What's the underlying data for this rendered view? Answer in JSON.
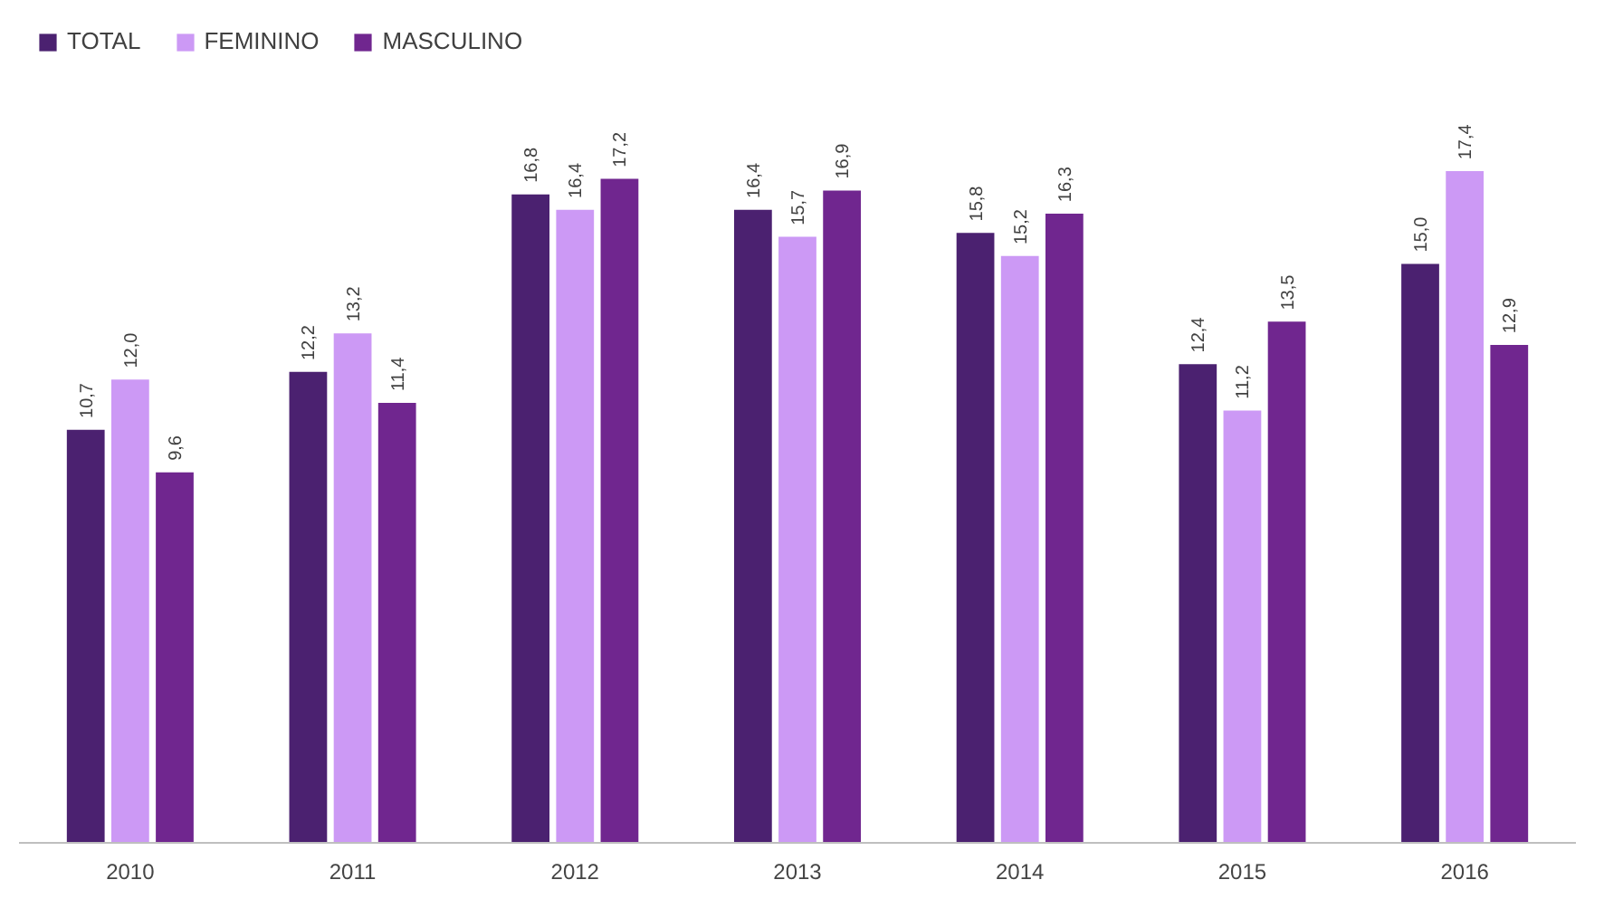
{
  "chart_data": {
    "type": "bar",
    "categories": [
      "2010",
      "2011",
      "2012",
      "2013",
      "2014",
      "2015",
      "2016"
    ],
    "series": [
      {
        "name": "TOTAL",
        "color": "#4b2170",
        "values": [
          10.7,
          12.2,
          16.8,
          16.4,
          15.8,
          12.4,
          15.0
        ],
        "value_labels": [
          "10,7",
          "12,2",
          "16,8",
          "16,4",
          "15,8",
          "12,4",
          "15,0"
        ]
      },
      {
        "name": "FEMININO",
        "color": "#cc99f5",
        "values": [
          12.0,
          13.2,
          16.4,
          15.7,
          15.2,
          11.2,
          17.4
        ],
        "value_labels": [
          "12,0",
          "13,2",
          "16,4",
          "15,7",
          "15,2",
          "11,2",
          "17,4"
        ]
      },
      {
        "name": "MASCULINO",
        "color": "#70268f",
        "values": [
          9.6,
          11.4,
          17.2,
          16.9,
          16.3,
          13.5,
          12.9
        ],
        "value_labels": [
          "9,6",
          "11,4",
          "17,2",
          "16,9",
          "16,3",
          "13,5",
          "12,9"
        ]
      }
    ],
    "legend": "top left",
    "grid": false,
    "tick_labels": "x"
  }
}
